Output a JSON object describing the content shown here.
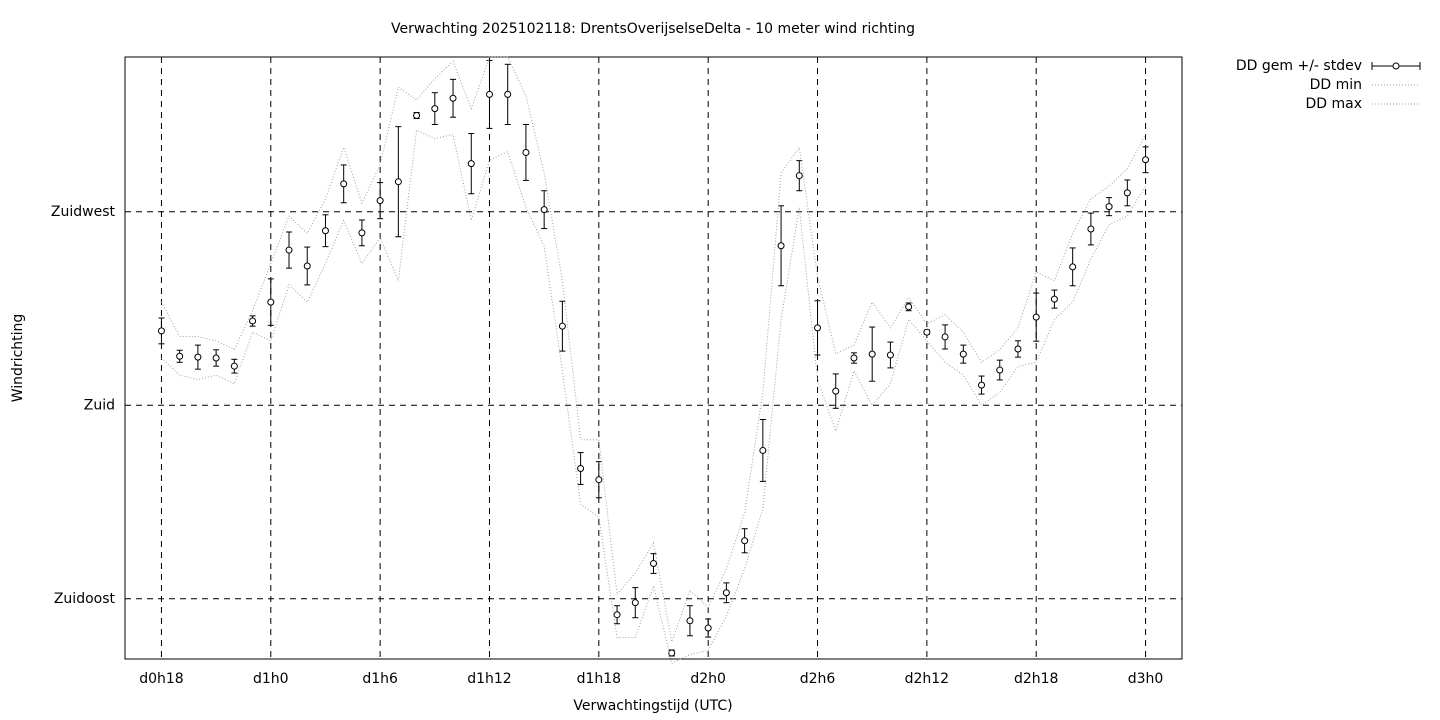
{
  "chart_data": {
    "type": "line",
    "title": "Verwachting 2025102118: DrentsOverijselseDelta - 10 meter wind richting",
    "xlabel": "Verwachtingstijd (UTC)",
    "ylabel": "Windrichting",
    "xlim": [
      16,
      74
    ],
    "ylim": [
      121,
      261
    ],
    "xticks": [
      {
        "value": 18,
        "label": "d0h18"
      },
      {
        "value": 24,
        "label": "d1h0"
      },
      {
        "value": 30,
        "label": "d1h6"
      },
      {
        "value": 36,
        "label": "d1h12"
      },
      {
        "value": 42,
        "label": "d1h18"
      },
      {
        "value": 48,
        "label": "d2h0"
      },
      {
        "value": 54,
        "label": "d2h6"
      },
      {
        "value": 60,
        "label": "d2h12"
      },
      {
        "value": 66,
        "label": "d2h18"
      },
      {
        "value": 72,
        "label": "d3h0"
      }
    ],
    "yticks": [
      {
        "value": 135,
        "label": "Zuidoost"
      },
      {
        "value": 180,
        "label": "Zuid"
      },
      {
        "value": 225,
        "label": "Zuidwest"
      }
    ],
    "grid": true,
    "legend": "outside-top-right",
    "x": [
      18,
      19,
      20,
      21,
      22,
      23,
      24,
      25,
      26,
      27,
      28,
      29,
      30,
      31,
      32,
      33,
      34,
      35,
      36,
      37,
      38,
      39,
      40,
      41,
      42,
      43,
      44,
      45,
      46,
      47,
      48,
      49,
      50,
      51,
      52,
      53,
      54,
      55,
      56,
      57,
      58,
      59,
      60,
      61,
      62,
      63,
      64,
      65,
      66,
      67,
      68,
      69,
      70,
      71,
      72
    ],
    "series": [
      {
        "name": "DD gem +/- stdev",
        "color": "#000000",
        "values": [
          197.3,
          191.4,
          191.2,
          191.0,
          189.1,
          199.6,
          204.0,
          216.1,
          212.4,
          220.6,
          231.5,
          220.1,
          227.6,
          232.0,
          247.4,
          249.0,
          251.4,
          236.2,
          252.3,
          252.3,
          238.8,
          225.5,
          198.4,
          165.3,
          162.7,
          131.3,
          134.1,
          143.2,
          122.4,
          129.9,
          128.2,
          136.4,
          148.5,
          169.5,
          217.1,
          233.4,
          198.0,
          183.3,
          191.0,
          191.9,
          191.7,
          202.9,
          197.0,
          195.9,
          191.9,
          184.7,
          188.2,
          193.1,
          200.5,
          204.7,
          212.2,
          221.0,
          226.2,
          229.4,
          237.1
        ],
        "errors": [
          3.0,
          1.4,
          2.8,
          1.9,
          1.6,
          1.2,
          5.4,
          4.2,
          4.4,
          3.7,
          4.4,
          3.0,
          4.2,
          12.8,
          0.7,
          3.7,
          4.4,
          7.0,
          7.9,
          7.0,
          6.5,
          4.4,
          5.8,
          3.7,
          4.2,
          2.1,
          3.5,
          2.3,
          0.7,
          3.5,
          2.1,
          2.3,
          2.8,
          7.2,
          9.3,
          3.5,
          6.3,
          4.0,
          1.2,
          6.3,
          3.0,
          0.9,
          0.5,
          2.8,
          2.1,
          2.1,
          2.3,
          1.9,
          5.6,
          2.1,
          4.4,
          3.7,
          2.1,
          3.0,
          3.0
        ]
      },
      {
        "name": "DD min",
        "color": "#a0a0a0",
        "values": [
          191,
          187,
          186,
          187,
          185,
          197,
          195,
          208,
          204,
          213,
          223,
          213,
          219,
          209,
          244,
          242,
          243,
          223,
          237,
          239,
          226,
          217,
          188,
          157,
          154,
          126,
          126,
          138,
          120,
          122,
          123,
          131,
          142,
          156,
          200,
          226,
          186,
          174,
          188,
          180,
          185,
          200,
          195,
          190,
          187,
          180,
          183,
          189,
          190,
          200,
          204,
          214,
          222,
          224,
          231
        ]
      },
      {
        "name": "DD max",
        "color": "#a0a0a0",
        "values": [
          204,
          196,
          196,
          195,
          193,
          202,
          213,
          224,
          220,
          228,
          240,
          227,
          236,
          254,
          251,
          256,
          260,
          249,
          261,
          261,
          252,
          234,
          209,
          172,
          172,
          136,
          141,
          148,
          125,
          137,
          133,
          142,
          155,
          183,
          234,
          240,
          210,
          192,
          194,
          204,
          198,
          205,
          199,
          201,
          197,
          190,
          193,
          198,
          211,
          209,
          220,
          228,
          231,
          235,
          243
        ]
      }
    ]
  }
}
